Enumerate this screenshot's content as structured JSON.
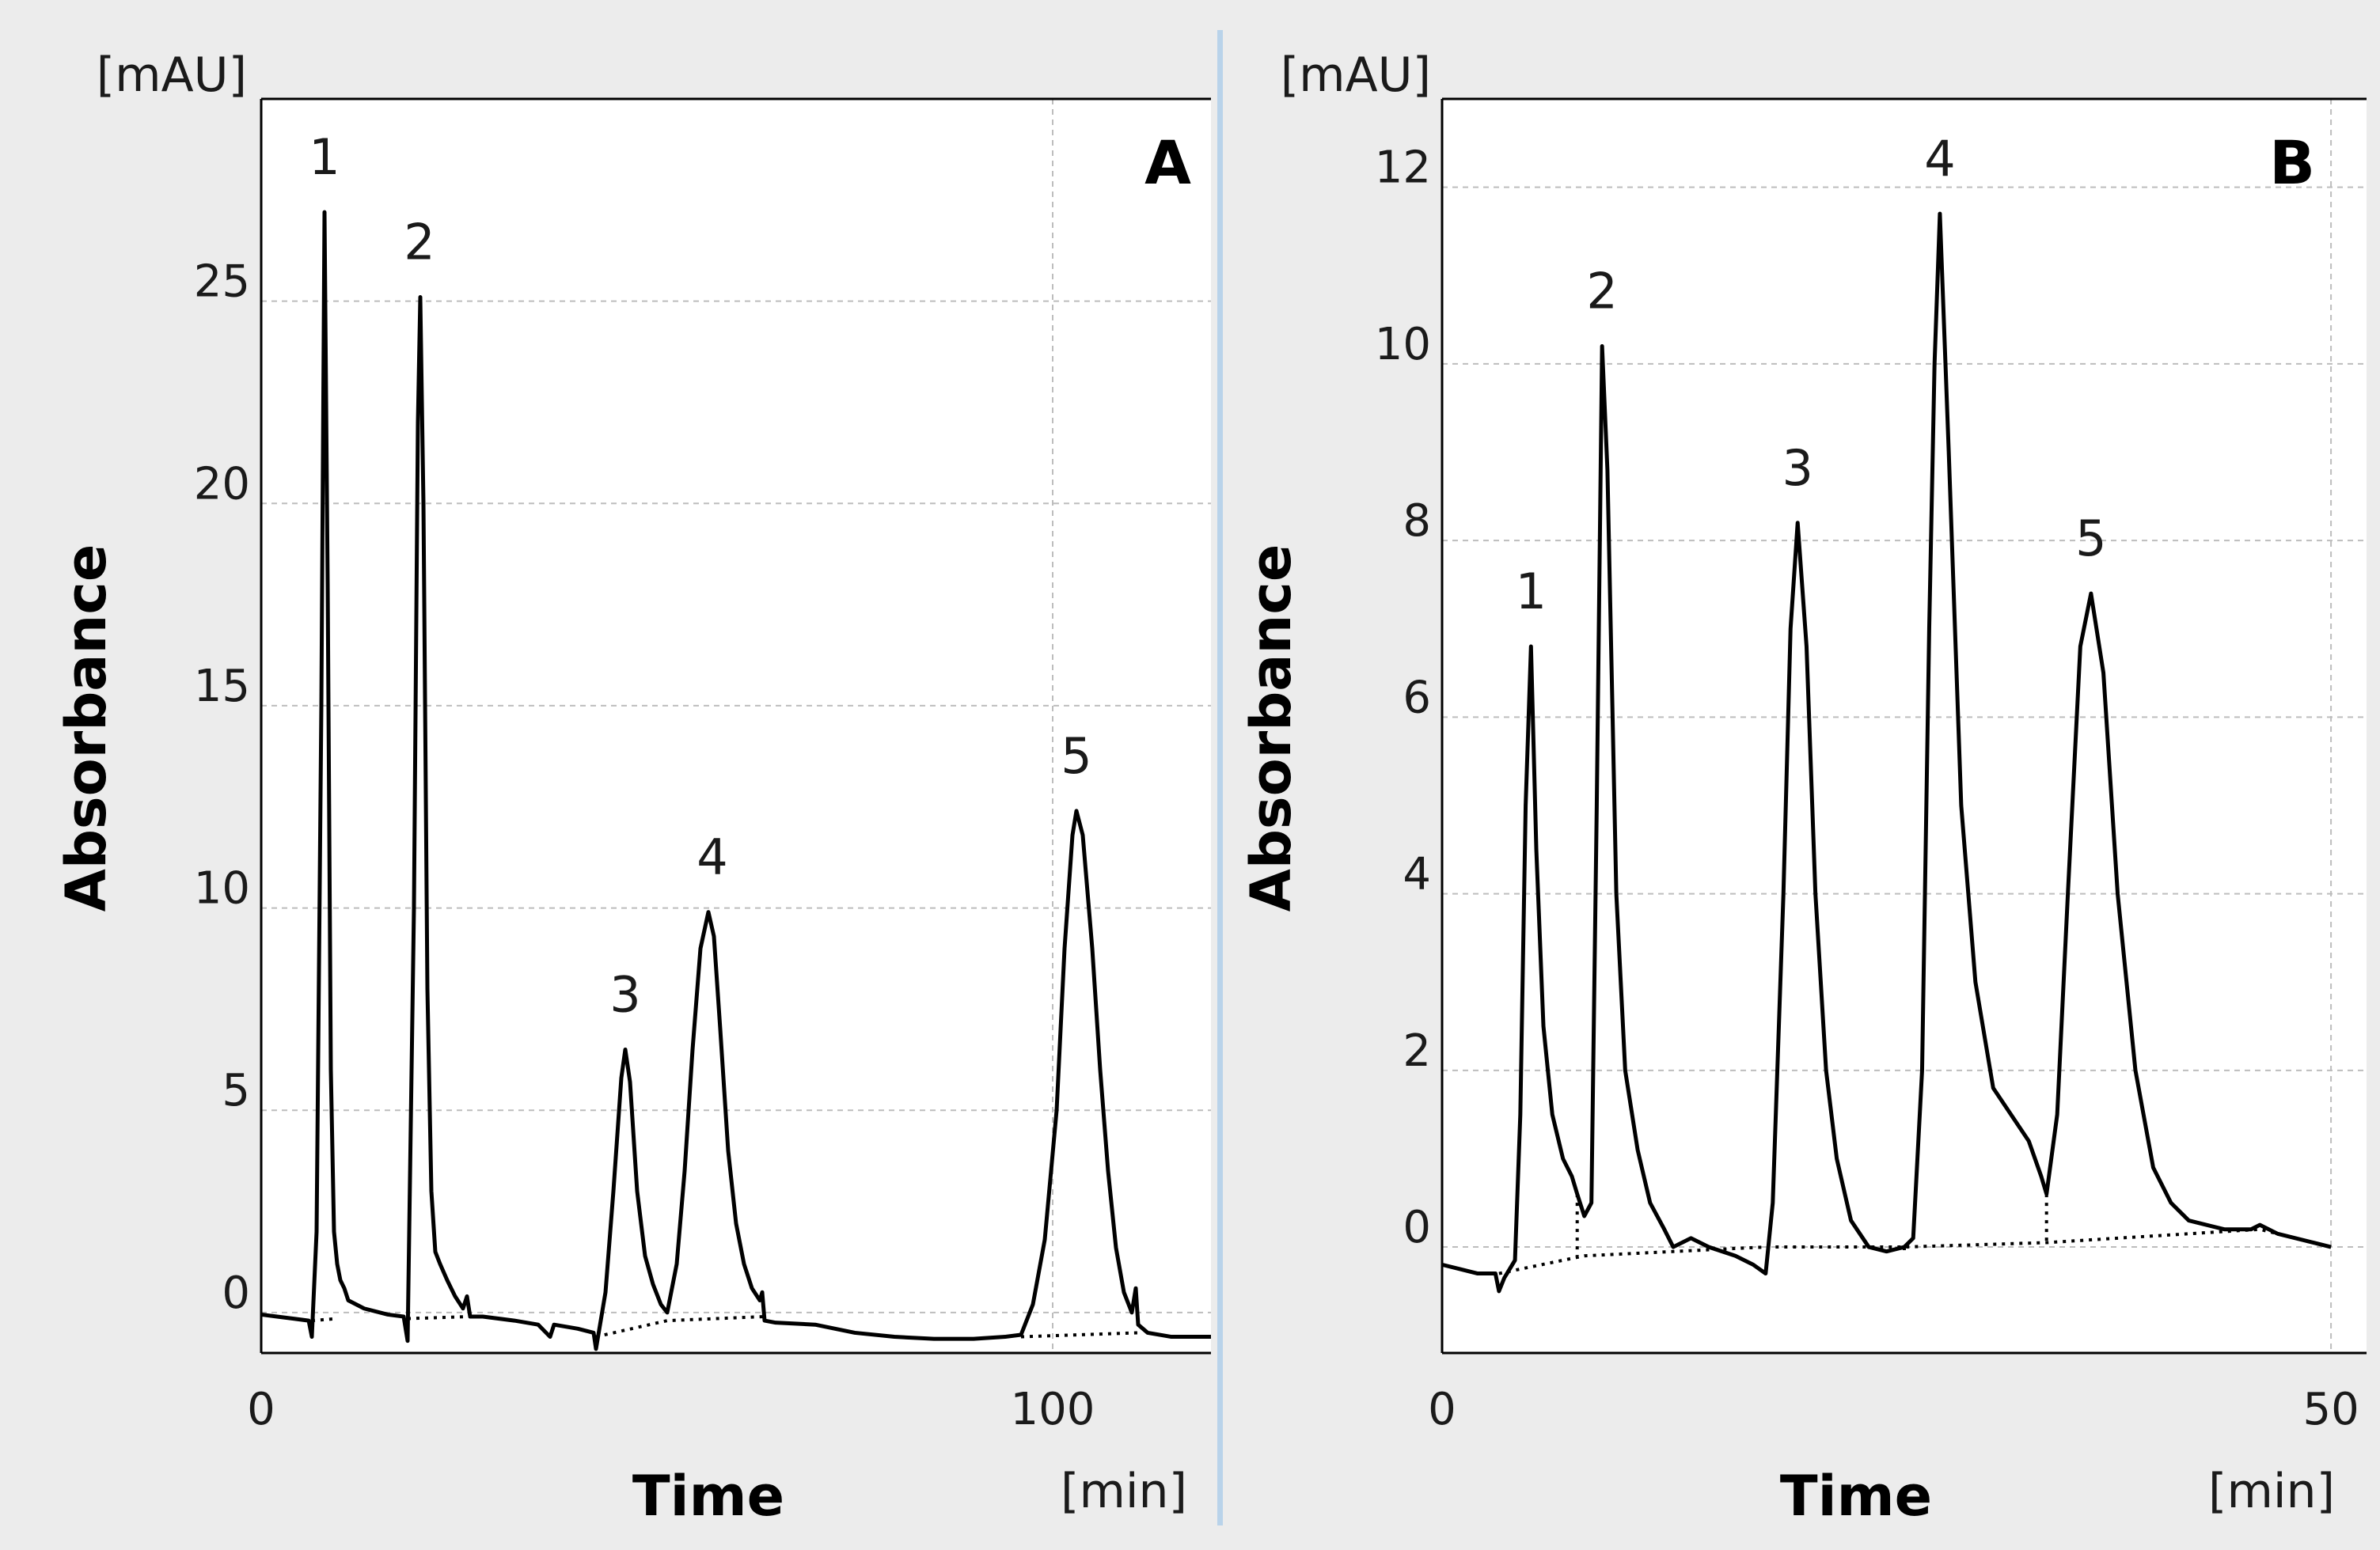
{
  "colors": {
    "background": "#ececec",
    "plot_background": "#ffffff",
    "trace": "#000000",
    "grid": "#bdbdbd",
    "divider": "#b9d3ea"
  },
  "chart_data": [
    {
      "type": "line",
      "panel_label": "A",
      "xlabel": "Time",
      "ylabel": "Absorbance",
      "x_unit": "[min]",
      "y_unit": "[mAU]",
      "xlim": [
        0,
        120
      ],
      "ylim": [
        -1,
        30
      ],
      "x_ticks": [
        0,
        100
      ],
      "y_ticks": [
        0,
        5,
        10,
        15,
        20,
        25
      ],
      "x_grid": [
        100
      ],
      "y_grid": [
        0,
        5,
        10,
        15,
        20,
        25
      ],
      "grid": true,
      "peaks": [
        {
          "label": "1",
          "time": 8,
          "height": 27.2
        },
        {
          "label": "2",
          "time": 20,
          "height": 25.1
        },
        {
          "label": "3",
          "time": 46,
          "height": 6.5
        },
        {
          "label": "4",
          "time": 57,
          "height": 9.9
        },
        {
          "label": "5",
          "time": 103,
          "height": 12.4
        }
      ],
      "trace": [
        [
          0,
          -0.05
        ],
        [
          2,
          -0.1
        ],
        [
          4,
          -0.15
        ],
        [
          6,
          -0.2
        ],
        [
          6.4,
          -0.6
        ],
        [
          7,
          2
        ],
        [
          7.6,
          15
        ],
        [
          8,
          27.2
        ],
        [
          8.4,
          18
        ],
        [
          8.8,
          6
        ],
        [
          9.2,
          2
        ],
        [
          9.6,
          1.2
        ],
        [
          10,
          0.8
        ],
        [
          10.5,
          0.6
        ],
        [
          11,
          0.3
        ],
        [
          13,
          0.1
        ],
        [
          16,
          -0.05
        ],
        [
          18,
          -0.1
        ],
        [
          18.5,
          -0.7
        ],
        [
          19.3,
          10
        ],
        [
          19.8,
          22
        ],
        [
          20.1,
          25.1
        ],
        [
          20.5,
          20
        ],
        [
          21,
          8
        ],
        [
          21.5,
          3
        ],
        [
          22,
          1.5
        ],
        [
          22.6,
          1.2
        ],
        [
          23.5,
          0.8
        ],
        [
          24.5,
          0.4
        ],
        [
          25.5,
          0.1
        ],
        [
          26,
          0.4
        ],
        [
          26.4,
          -0.1
        ],
        [
          28,
          -0.1
        ],
        [
          32,
          -0.2
        ],
        [
          35,
          -0.3
        ],
        [
          36,
          -0.5
        ],
        [
          36.5,
          -0.6
        ],
        [
          37,
          -0.3
        ],
        [
          40,
          -0.4
        ],
        [
          42,
          -0.5
        ],
        [
          42.3,
          -0.9
        ],
        [
          43.5,
          0.5
        ],
        [
          44.5,
          3
        ],
        [
          45.5,
          5.8
        ],
        [
          46,
          6.5
        ],
        [
          46.6,
          5.7
        ],
        [
          47.5,
          3
        ],
        [
          48.5,
          1.4
        ],
        [
          49.5,
          0.7
        ],
        [
          50.5,
          0.2
        ],
        [
          51.3,
          0.0
        ],
        [
          52.5,
          1.2
        ],
        [
          53.5,
          3.5
        ],
        [
          54.5,
          6.5
        ],
        [
          55.5,
          9
        ],
        [
          56.5,
          9.9
        ],
        [
          57.2,
          9.3
        ],
        [
          58,
          7
        ],
        [
          59,
          4
        ],
        [
          60,
          2.2
        ],
        [
          61,
          1.2
        ],
        [
          62,
          0.6
        ],
        [
          63,
          0.3
        ],
        [
          63.3,
          0.5
        ],
        [
          63.6,
          -0.2
        ],
        [
          65,
          -0.25
        ],
        [
          70,
          -0.3
        ],
        [
          75,
          -0.5
        ],
        [
          80,
          -0.6
        ],
        [
          85,
          -0.65
        ],
        [
          90,
          -0.65
        ],
        [
          94,
          -0.6
        ],
        [
          96,
          -0.55
        ],
        [
          97.5,
          0.2
        ],
        [
          99,
          1.8
        ],
        [
          100.5,
          5
        ],
        [
          101.5,
          9
        ],
        [
          102.5,
          11.8
        ],
        [
          103,
          12.4
        ],
        [
          103.8,
          11.8
        ],
        [
          105,
          9
        ],
        [
          106,
          6
        ],
        [
          107,
          3.5
        ],
        [
          108,
          1.6
        ],
        [
          109,
          0.5
        ],
        [
          110,
          0.0
        ],
        [
          110.5,
          0.6
        ],
        [
          110.8,
          -0.3
        ],
        [
          112,
          -0.5
        ],
        [
          115,
          -0.6
        ],
        [
          120,
          -0.6
        ]
      ],
      "baseline_segments": [
        [
          [
            6.4,
            -0.2
          ],
          [
            9.6,
            -0.15
          ]
        ],
        [
          [
            18.5,
            -0.15
          ],
          [
            26.4,
            -0.1
          ]
        ],
        [
          [
            42.3,
            -0.6
          ],
          [
            51.3,
            -0.2
          ],
          [
            63.6,
            -0.1
          ]
        ],
        [
          [
            96,
            -0.6
          ],
          [
            110.8,
            -0.5
          ]
        ]
      ]
    },
    {
      "type": "line",
      "panel_label": "B",
      "xlabel": "Time",
      "ylabel": "Absorbance",
      "x_unit": "[min]",
      "y_unit": "[mAU]",
      "xlim": [
        0,
        52
      ],
      "ylim": [
        -1.2,
        13
      ],
      "x_ticks": [
        0,
        50
      ],
      "y_ticks": [
        0,
        2,
        4,
        6,
        8,
        10,
        12
      ],
      "x_grid": [
        50
      ],
      "y_grid": [
        0,
        2,
        4,
        6,
        8,
        10,
        12
      ],
      "grid": true,
      "peaks": [
        {
          "label": "1",
          "time": 5,
          "height": 6.8
        },
        {
          "label": "2",
          "time": 9,
          "height": 10.2
        },
        {
          "label": "3",
          "time": 20,
          "height": 8.2
        },
        {
          "label": "4",
          "time": 28,
          "height": 11.7
        },
        {
          "label": "5",
          "time": 36.5,
          "height": 7.4
        }
      ],
      "trace": [
        [
          0,
          -0.2
        ],
        [
          1,
          -0.25
        ],
        [
          2,
          -0.3
        ],
        [
          3,
          -0.3
        ],
        [
          3.2,
          -0.5
        ],
        [
          3.5,
          -0.35
        ],
        [
          4.1,
          -0.15
        ],
        [
          4.4,
          1.5
        ],
        [
          4.7,
          5
        ],
        [
          5,
          6.8
        ],
        [
          5.3,
          4.5
        ],
        [
          5.7,
          2.5
        ],
        [
          6.2,
          1.5
        ],
        [
          6.8,
          1.0
        ],
        [
          7.3,
          0.8
        ],
        [
          7.6,
          0.6
        ],
        [
          8,
          0.35
        ],
        [
          8.4,
          0.5
        ],
        [
          8.7,
          5
        ],
        [
          9,
          10.2
        ],
        [
          9.3,
          8.8
        ],
        [
          9.8,
          4
        ],
        [
          10.3,
          2
        ],
        [
          11,
          1.1
        ],
        [
          11.7,
          0.5
        ],
        [
          12.5,
          0.2
        ],
        [
          13,
          0.0
        ],
        [
          14,
          0.1
        ],
        [
          15,
          0.0
        ],
        [
          16.5,
          -0.1
        ],
        [
          17.5,
          -0.2
        ],
        [
          18.2,
          -0.3
        ],
        [
          18.6,
          0.5
        ],
        [
          19.2,
          4
        ],
        [
          19.6,
          7
        ],
        [
          20,
          8.2
        ],
        [
          20.5,
          6.8
        ],
        [
          21,
          4
        ],
        [
          21.6,
          2
        ],
        [
          22.2,
          1.0
        ],
        [
          23,
          0.3
        ],
        [
          24,
          0.0
        ],
        [
          25,
          -0.05
        ],
        [
          26,
          0.0
        ],
        [
          26.5,
          0.1
        ],
        [
          27,
          2
        ],
        [
          27.4,
          7
        ],
        [
          27.7,
          10
        ],
        [
          28,
          11.7
        ],
        [
          28.5,
          9
        ],
        [
          29.2,
          5
        ],
        [
          30,
          3
        ],
        [
          31,
          1.8
        ],
        [
          32,
          1.5
        ],
        [
          33,
          1.2
        ],
        [
          33.7,
          0.8
        ],
        [
          34,
          0.6
        ],
        [
          34.6,
          1.5
        ],
        [
          35.2,
          4
        ],
        [
          35.9,
          6.8
        ],
        [
          36.5,
          7.4
        ],
        [
          37.2,
          6.5
        ],
        [
          38,
          4
        ],
        [
          39,
          2
        ],
        [
          40,
          0.9
        ],
        [
          41,
          0.5
        ],
        [
          42,
          0.3
        ],
        [
          44,
          0.2
        ],
        [
          45.5,
          0.2
        ],
        [
          46,
          0.25
        ],
        [
          47,
          0.15
        ],
        [
          49,
          0.05
        ],
        [
          50,
          0.0
        ]
      ],
      "baseline_segments": [
        [
          [
            3.2,
            -0.3
          ],
          [
            8.0,
            -0.1
          ],
          [
            18.2,
            0.0
          ],
          [
            26.0,
            0.0
          ],
          [
            34.0,
            0.05
          ],
          [
            46.0,
            0.2
          ],
          [
            50.0,
            0.0
          ]
        ]
      ],
      "drop_lines": [
        [
          7.6,
          0.6,
          -0.1
        ],
        [
          26.0,
          0.0,
          -0.05
        ],
        [
          34.0,
          0.6,
          0.05
        ]
      ]
    }
  ]
}
